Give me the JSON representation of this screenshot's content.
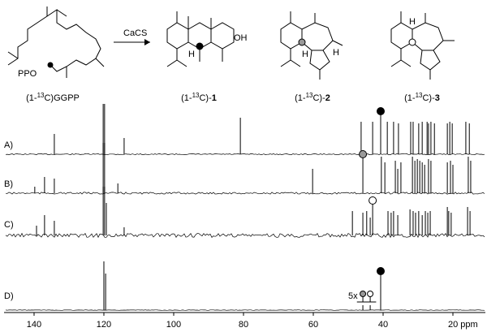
{
  "scheme": {
    "reagent": "CaCS",
    "leaving_group": "PPO",
    "hydroxyl": "OH",
    "hydrogen": "H",
    "compounds": [
      {
        "pre": "(1-",
        "iso": "13",
        "post": "C)GGPP"
      },
      {
        "pre": "(1-",
        "iso": "13",
        "post": "C)-",
        "num": "1"
      },
      {
        "pre": "(1-",
        "iso": "13",
        "post": "C)-",
        "num": "2"
      },
      {
        "pre": "(1-",
        "iso": "13",
        "post": "C)-",
        "num": "3"
      }
    ]
  },
  "spectra": {
    "xlim": [
      148.6,
      10.7
    ],
    "xticks": [
      140,
      120,
      100,
      80,
      60,
      40,
      {
        "value": 20,
        "label": "20 ppm"
      }
    ],
    "inset_label": "5x",
    "panels": [
      {
        "label": "A)",
        "ppm": [
          134.2,
          120.2,
          119.8,
          114.2,
          80.9,
          46.3,
          43.0,
          40.7,
          38.8,
          37.0,
          35.6,
          32.1,
          31.4,
          29.8,
          28.8,
          27.4,
          27.0,
          26.3,
          25.3,
          21.6,
          20.9,
          20.2,
          16.3,
          15.3
        ],
        "intensity": [
          25,
          62,
          62,
          20,
          45,
          40,
          40,
          45,
          40,
          40,
          38,
          40,
          40,
          38,
          40,
          40,
          38,
          40,
          38,
          38,
          40,
          38,
          40,
          38
        ],
        "markers": [
          {
            "ppm": 40.7,
            "color": "#000000"
          }
        ]
      },
      {
        "label": "B)",
        "ppm": [
          139.8,
          137.0,
          134.2,
          120.2,
          119.8,
          116.0,
          60.2,
          45.8,
          40.5,
          39.5,
          36.5,
          35.8,
          34.9,
          31.6,
          30.9,
          30.2,
          29.5,
          28.8,
          28.1,
          27.0,
          26.3,
          21.6,
          20.7,
          20.0,
          15.6,
          14.9
        ],
        "intensity": [
          8,
          20,
          18,
          62,
          62,
          12,
          30,
          40,
          45,
          38,
          40,
          30,
          38,
          45,
          40,
          42,
          40,
          38,
          35,
          42,
          40,
          38,
          40,
          35,
          45,
          40
        ],
        "markers": [
          {
            "ppm": 45.8,
            "color": "#999999"
          }
        ]
      },
      {
        "label": "C)",
        "ppm": [
          139.3,
          137.0,
          134.2,
          120.2,
          119.8,
          119.3,
          114.2,
          48.8,
          45.8,
          44.7,
          43.7,
          43.0,
          38.6,
          37.7,
          37.0,
          35.8,
          32.3,
          31.4,
          30.7,
          29.8,
          28.8,
          27.9,
          27.2,
          26.5,
          21.6,
          21.2,
          20.5,
          15.8,
          15.1
        ],
        "intensity": [
          12,
          25,
          18,
          60,
          60,
          40,
          10,
          30,
          28,
          30,
          22,
          35,
          30,
          28,
          30,
          25,
          32,
          30,
          28,
          30,
          25,
          30,
          28,
          30,
          35,
          30,
          28,
          35,
          30
        ],
        "markers": [
          {
            "ppm": 43.0,
            "color": "#ffffff"
          }
        ]
      },
      {
        "label": "D)",
        "ppm": [
          120.0,
          119.5,
          45.8,
          43.7,
          40.7
        ],
        "intensity": [
          60,
          45,
          6,
          6,
          40
        ],
        "markers": [
          {
            "ppm": 45.8,
            "color": "#999999"
          },
          {
            "ppm": 43.7,
            "color": "#ffffff"
          },
          {
            "ppm": 40.7,
            "color": "#000000"
          }
        ]
      }
    ]
  }
}
